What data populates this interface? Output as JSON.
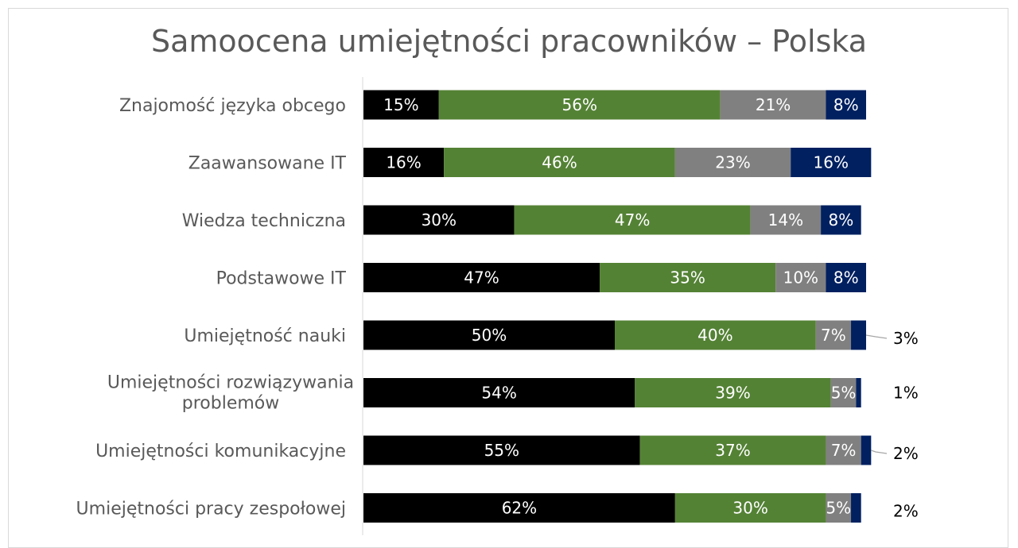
{
  "chart_data": {
    "type": "bar",
    "orientation": "horizontal",
    "stacked": true,
    "title": "Samoocena umiejętności pracowników – Polska",
    "categories": [
      "Znajomość języka obcego",
      "Zaawansowane IT",
      "Wiedza techniczna",
      "Podstawowe IT",
      "Umiejętność nauki",
      "Umiejętności rozwiązywania problemów",
      "Umiejętności komunikacyjne",
      "Umiejętności pracy zespołowej"
    ],
    "series": [
      {
        "color": "#000000",
        "values": [
          15,
          16,
          30,
          47,
          50,
          54,
          55,
          62
        ]
      },
      {
        "color": "#548235",
        "values": [
          56,
          46,
          47,
          35,
          40,
          39,
          37,
          30
        ]
      },
      {
        "color": "#808080",
        "values": [
          21,
          23,
          14,
          10,
          7,
          5,
          7,
          5
        ]
      },
      {
        "color": "#002060",
        "values": [
          8,
          16,
          8,
          8,
          3,
          1,
          2,
          2
        ]
      }
    ],
    "value_suffix": "%",
    "xlim": [
      0,
      100
    ],
    "grid": false,
    "legend": "none"
  }
}
